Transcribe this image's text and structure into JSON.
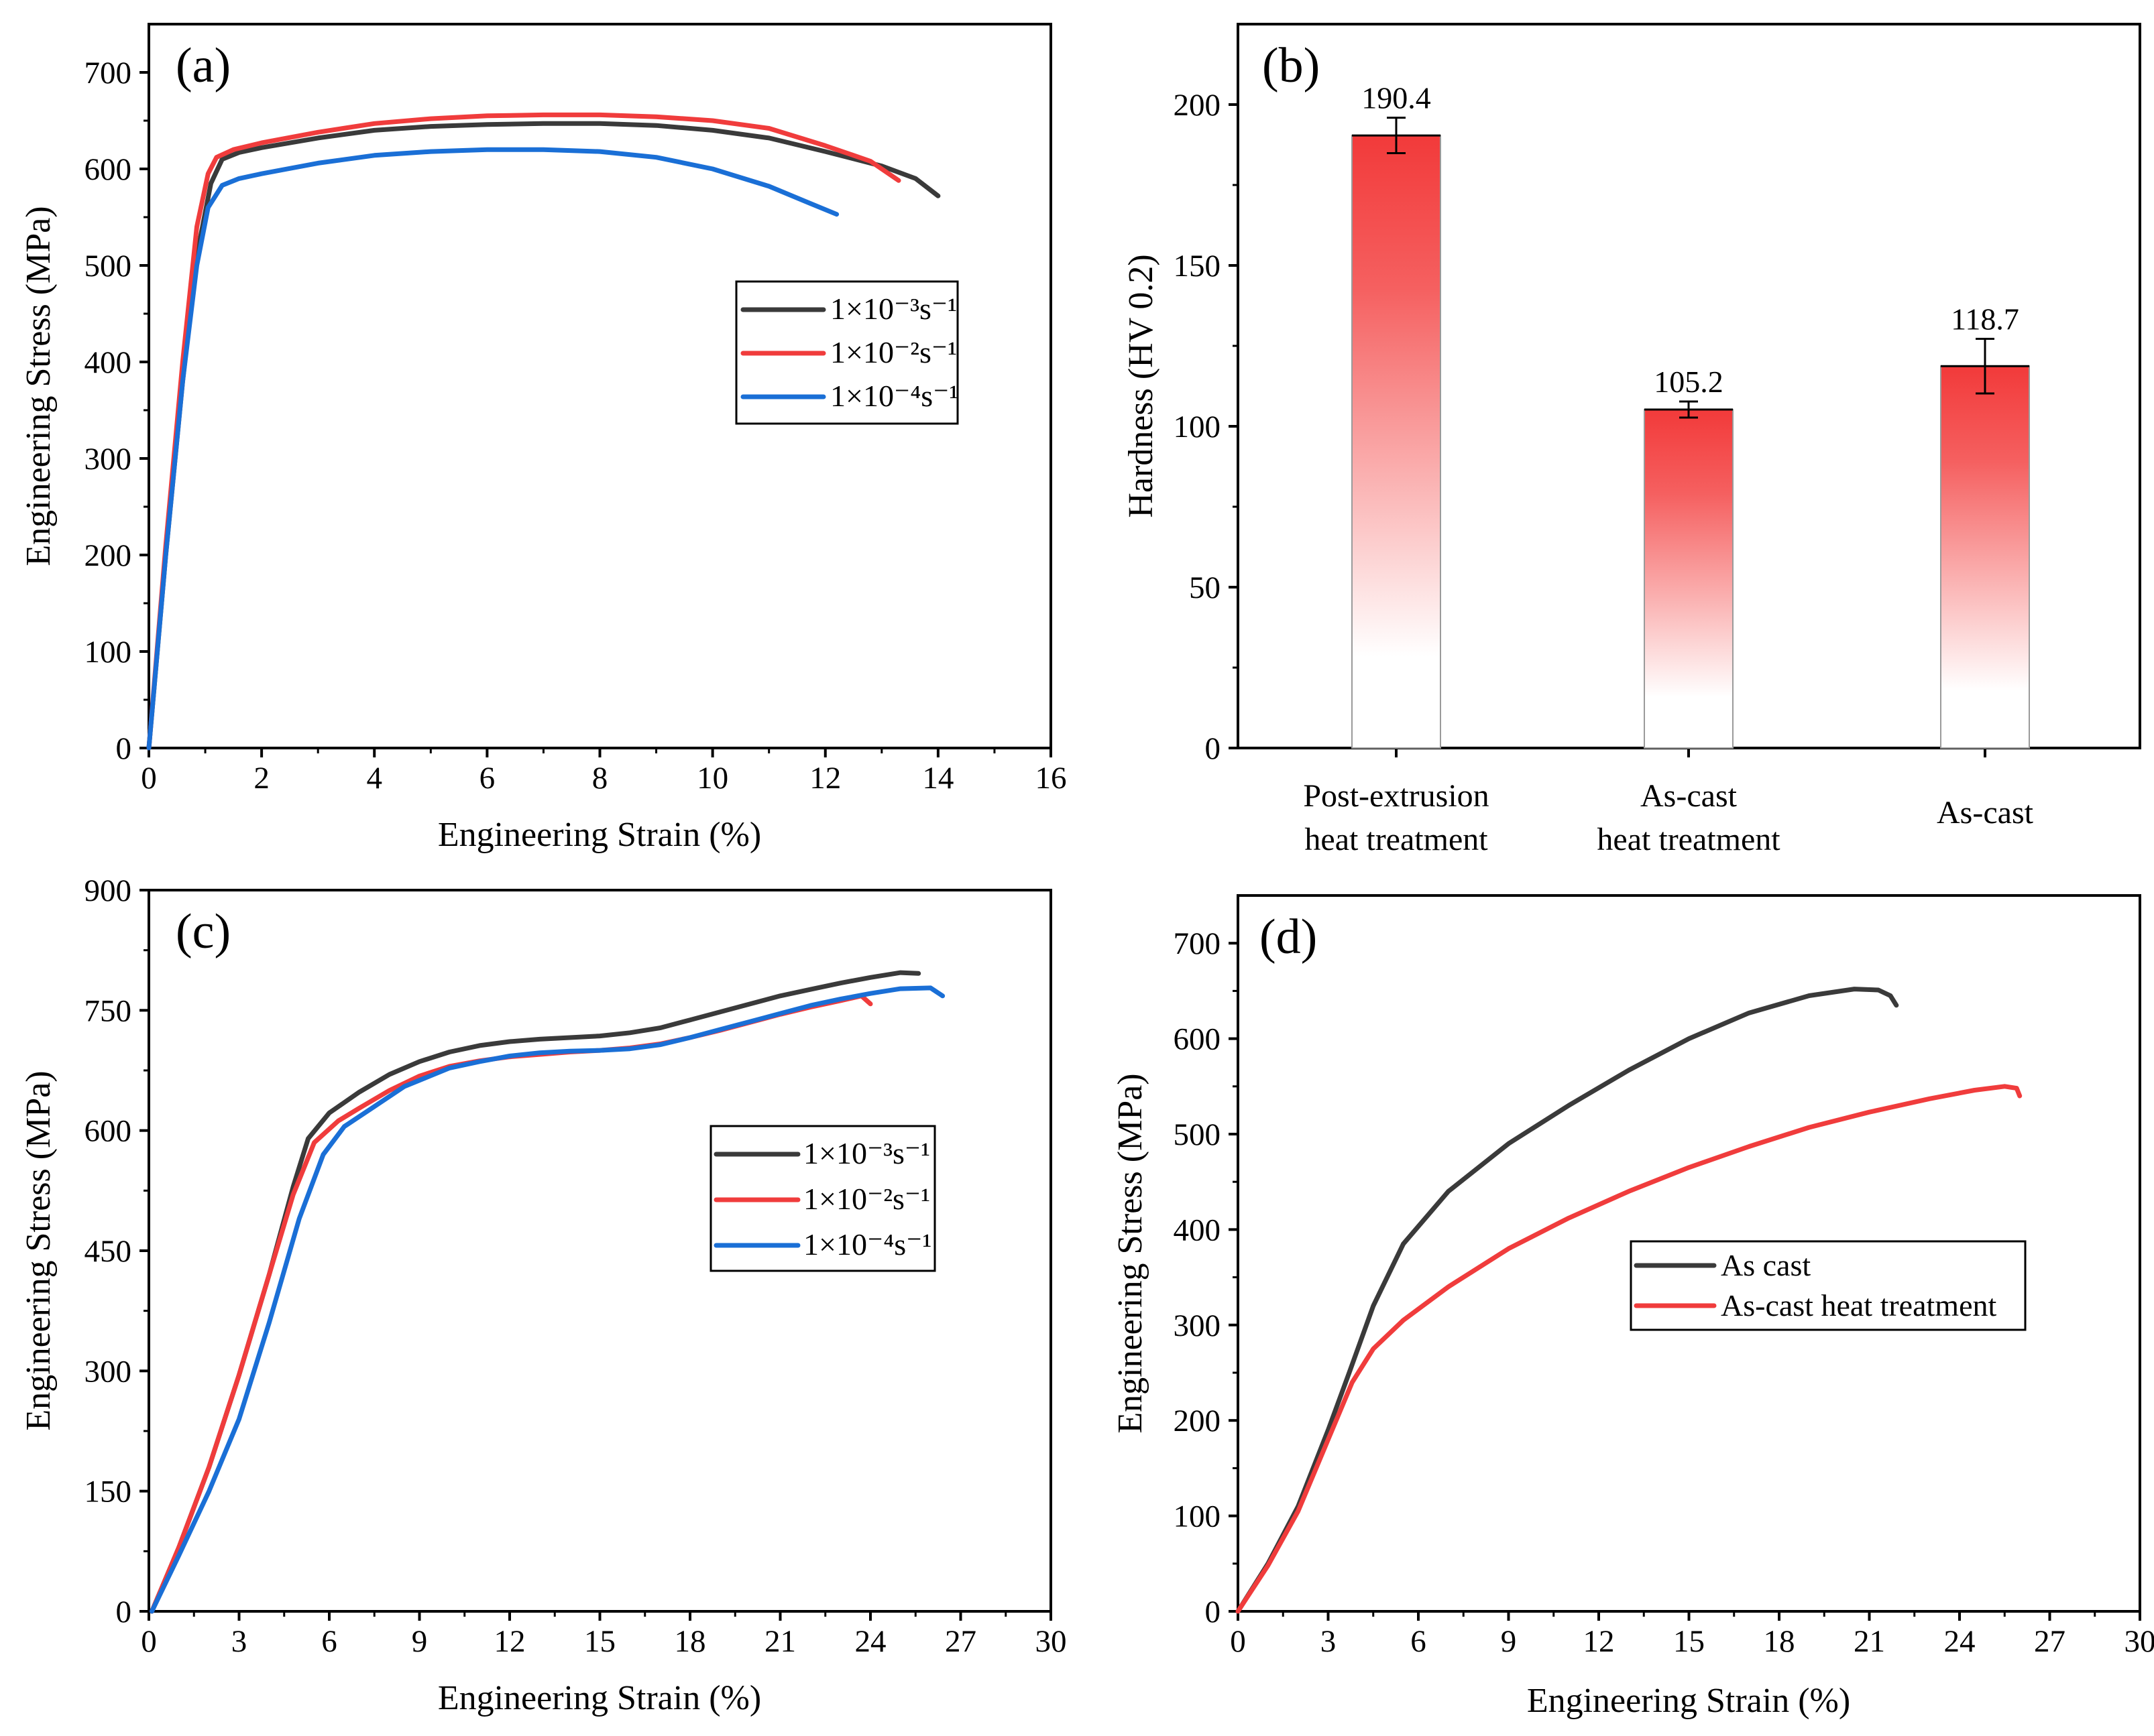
{
  "colors": {
    "black": "#3a3a3a",
    "red": "#f03c3c",
    "blue": "#1a6fd6",
    "bar_top": "#f23a3a"
  },
  "chart_data": [
    {
      "id": "a",
      "type": "line",
      "panel_label": "(a)",
      "xlabel": "Engineering Strain (%)",
      "ylabel": "Engineering Stress (MPa)",
      "xlim": [
        0,
        16
      ],
      "ylim": [
        0,
        750
      ],
      "xticks": [
        0,
        2,
        4,
        6,
        8,
        10,
        12,
        14,
        16
      ],
      "yticks": [
        0,
        100,
        200,
        300,
        400,
        500,
        600,
        700
      ],
      "legend": {
        "position": "center-right"
      },
      "series": [
        {
          "name": "1×10⁻³s⁻¹",
          "color": "#3a3a3a",
          "x": [
            0,
            0.3,
            0.6,
            0.85,
            1.1,
            1.3,
            1.6,
            2,
            3,
            4,
            5,
            6,
            7,
            8,
            9,
            10,
            11,
            12,
            13,
            13.6,
            14
          ],
          "y": [
            0,
            200,
            380,
            510,
            585,
            610,
            617,
            622,
            632,
            640,
            644,
            646,
            647,
            647,
            645,
            640,
            632,
            618,
            603,
            590,
            572
          ]
        },
        {
          "name": "1×10⁻²s⁻¹",
          "color": "#f03c3c",
          "x": [
            0,
            0.3,
            0.6,
            0.85,
            1.05,
            1.2,
            1.5,
            2,
            3,
            4,
            5,
            6,
            7,
            8,
            9,
            10,
            11,
            12,
            12.8,
            13.3
          ],
          "y": [
            0,
            210,
            400,
            540,
            595,
            612,
            620,
            627,
            638,
            647,
            652,
            655,
            656,
            656,
            654,
            650,
            642,
            624,
            608,
            588
          ]
        },
        {
          "name": "1×10⁻⁴s⁻¹",
          "color": "#1a6fd6",
          "x": [
            0,
            0.3,
            0.6,
            0.85,
            1.05,
            1.3,
            1.6,
            2,
            3,
            4,
            5,
            6,
            7,
            8,
            9,
            10,
            11,
            11.7,
            12.2
          ],
          "y": [
            0,
            200,
            380,
            500,
            560,
            583,
            590,
            595,
            606,
            614,
            618,
            620,
            620,
            618,
            612,
            600,
            582,
            565,
            553
          ]
        }
      ]
    },
    {
      "id": "b",
      "type": "bar",
      "panel_label": "(b)",
      "ylabel": "Hardness (HV 0.2)",
      "ylim": [
        0,
        225
      ],
      "yticks": [
        0,
        50,
        100,
        150,
        200
      ],
      "categories": [
        [
          "Post-extrusion",
          "heat treatment"
        ],
        [
          "As-cast",
          "heat treatment"
        ],
        [
          "As-cast"
        ]
      ],
      "values": [
        190.4,
        105.2,
        118.7
      ],
      "value_labels": [
        "190.4",
        "105.2",
        "118.7"
      ],
      "errors": [
        5.5,
        2.5,
        8.5
      ]
    },
    {
      "id": "c",
      "type": "line",
      "panel_label": "(c)",
      "xlabel": "Engineering Strain (%)",
      "ylabel": "Engineering Stress (MPa)",
      "xlim": [
        0,
        30
      ],
      "ylim": [
        0,
        900
      ],
      "xticks": [
        0,
        3,
        6,
        9,
        12,
        15,
        18,
        21,
        24,
        27,
        30
      ],
      "yticks": [
        0,
        150,
        300,
        450,
        600,
        750,
        900
      ],
      "legend": {
        "position": "center-right"
      },
      "series": [
        {
          "name": "1×10⁻³s⁻¹",
          "color": "#3a3a3a",
          "x": [
            0.1,
            1,
            2,
            3,
            4,
            4.8,
            5.3,
            6,
            7,
            8,
            9,
            10,
            11,
            12,
            13,
            14,
            15,
            16,
            17,
            18,
            19,
            20,
            21,
            22,
            23,
            24,
            25,
            25.6
          ],
          "y": [
            0,
            80,
            180,
            295,
            420,
            530,
            590,
            622,
            648,
            670,
            686,
            698,
            706,
            711,
            714,
            716,
            718,
            722,
            728,
            738,
            748,
            758,
            768,
            776,
            784,
            791,
            797,
            796
          ]
        },
        {
          "name": "1×10⁻²s⁻¹",
          "color": "#f03c3c",
          "x": [
            0.1,
            1,
            2,
            3,
            4,
            4.8,
            5.5,
            6.3,
            7,
            8,
            9,
            10,
            11,
            12,
            13,
            14,
            15,
            16,
            17,
            18,
            19,
            20,
            21,
            22,
            23,
            23.7,
            24
          ],
          "y": [
            0,
            80,
            180,
            295,
            420,
            520,
            585,
            612,
            628,
            650,
            668,
            680,
            687,
            692,
            695,
            698,
            700,
            703,
            708,
            716,
            725,
            735,
            745,
            754,
            762,
            768,
            758
          ]
        },
        {
          "name": "1×10⁻⁴s⁻¹",
          "color": "#1a6fd6",
          "x": [
            0.1,
            1,
            2,
            3,
            4,
            5,
            5.8,
            6.5,
            7.5,
            8.5,
            10,
            11,
            12,
            13,
            14,
            15,
            16,
            17,
            18,
            19,
            20,
            21,
            22,
            23,
            24,
            25,
            26,
            26.4
          ],
          "y": [
            0,
            70,
            150,
            240,
            360,
            490,
            570,
            605,
            630,
            655,
            678,
            686,
            693,
            697,
            699,
            700,
            702,
            707,
            716,
            726,
            736,
            746,
            756,
            764,
            771,
            777,
            778,
            768
          ]
        }
      ]
    },
    {
      "id": "d",
      "type": "line",
      "panel_label": "(d)",
      "xlabel": "Engineering Strain (%)",
      "ylabel": "Engineering Stress (MPa)",
      "xlim": [
        0,
        30
      ],
      "ylim": [
        0,
        750
      ],
      "xticks": [
        0,
        3,
        6,
        9,
        12,
        15,
        18,
        21,
        24,
        27,
        30
      ],
      "yticks": [
        0,
        100,
        200,
        300,
        400,
        500,
        600,
        700
      ],
      "legend": {
        "position": "center-right"
      },
      "series": [
        {
          "name": "As cast",
          "color": "#3a3a3a",
          "x": [
            0,
            1,
            2,
            3,
            3.7,
            4.5,
            5.5,
            7,
            9,
            11,
            13,
            15,
            17,
            19,
            20.5,
            21.3,
            21.7,
            21.9
          ],
          "y": [
            0,
            50,
            110,
            190,
            250,
            320,
            385,
            440,
            490,
            530,
            567,
            600,
            627,
            645,
            652,
            651,
            645,
            635
          ]
        },
        {
          "name": "As-cast heat treatment",
          "color": "#f03c3c",
          "x": [
            0,
            1,
            2,
            3,
            3.8,
            4.5,
            5.5,
            7,
            9,
            11,
            13,
            15,
            17,
            19,
            21,
            23,
            24.5,
            25.5,
            25.9,
            26
          ],
          "y": [
            0,
            48,
            105,
            180,
            240,
            275,
            305,
            340,
            380,
            412,
            440,
            465,
            487,
            507,
            523,
            537,
            546,
            550,
            548,
            540
          ]
        }
      ]
    }
  ]
}
